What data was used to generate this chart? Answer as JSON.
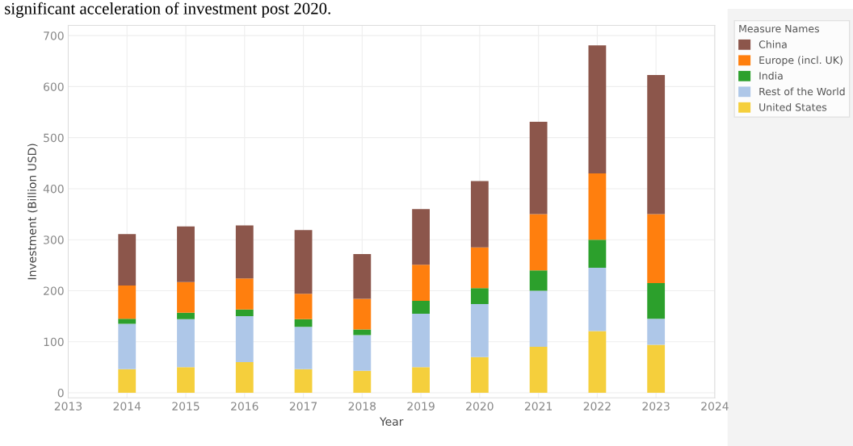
{
  "chart_data": {
    "type": "bar",
    "stacked": true,
    "annotations": [
      "significant acceleration of investment post 2020."
    ],
    "xlabel": "Year",
    "ylabel": "Investment (Billion USD)",
    "legend_title": "Measure Names",
    "x": [
      2014,
      2015,
      2016,
      2017,
      2018,
      2019,
      2020,
      2021,
      2022,
      2023
    ],
    "series": [
      {
        "name": "United States",
        "color": "#f5cf3c",
        "values": [
          46,
          50,
          60,
          46,
          43,
          50,
          70,
          90,
          121,
          94
        ]
      },
      {
        "name": "Rest of the World",
        "color": "#aec7e8",
        "values": [
          89,
          94,
          90,
          83,
          70,
          105,
          104,
          110,
          124,
          51
        ]
      },
      {
        "name": "India",
        "color": "#2ca02c",
        "values": [
          10,
          13,
          13,
          15,
          11,
          25,
          31,
          40,
          55,
          70
        ]
      },
      {
        "name": "Europe (incl. UK)",
        "color": "#ff7f0e",
        "values": [
          65,
          60,
          61,
          50,
          60,
          71,
          80,
          110,
          130,
          135
        ]
      },
      {
        "name": "China",
        "color": "#8c564b",
        "values": [
          101,
          109,
          104,
          125,
          88,
          109,
          130,
          181,
          251,
          273
        ]
      }
    ],
    "xlim": [
      2013,
      2024
    ],
    "xticks": [
      2013,
      2014,
      2015,
      2016,
      2017,
      2018,
      2019,
      2020,
      2021,
      2022,
      2023,
      2024
    ],
    "ylim": [
      -10,
      720
    ],
    "yticks": [
      0,
      100,
      200,
      300,
      400,
      500,
      600,
      700
    ],
    "grid": true,
    "legend": "right"
  }
}
